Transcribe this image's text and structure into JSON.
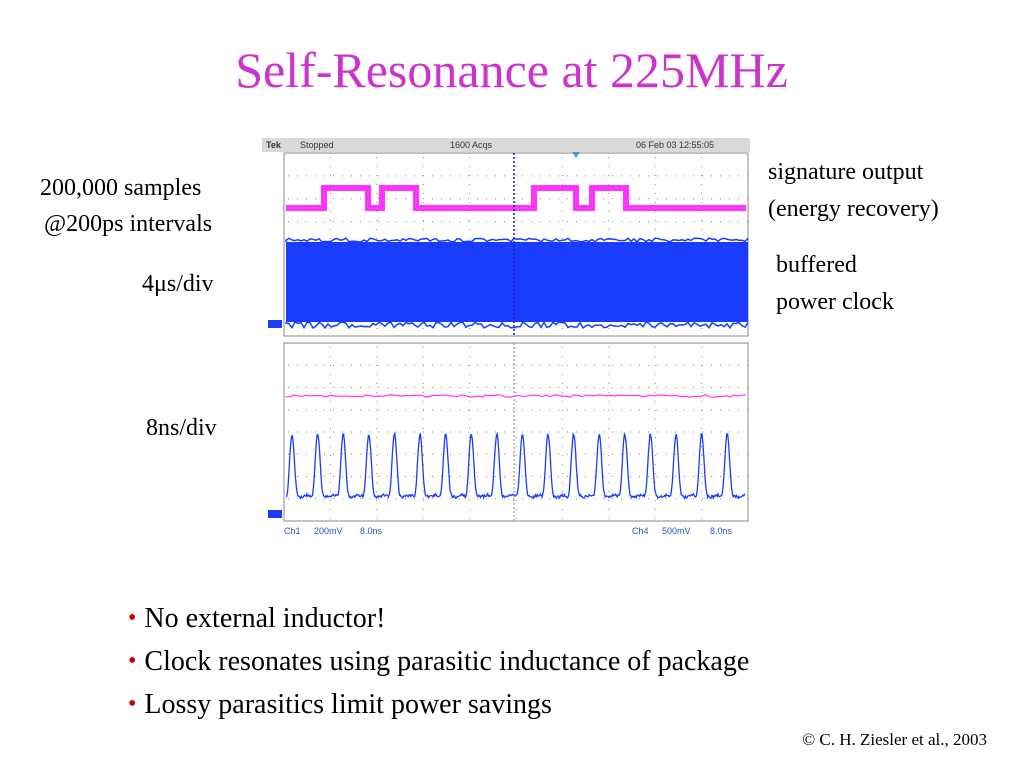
{
  "title": "Self-Resonance at 225MHz",
  "left_labels": {
    "samples": "200,000 samples",
    "intervals": "@200ps intervals",
    "timebase_top": "4μs/div",
    "timebase_bottom": "8ns/div"
  },
  "right_labels": {
    "signature_line1": "signature output",
    "signature_line2": "(energy recovery)",
    "buffered_line1": "buffered",
    "buffered_line2": "power clock"
  },
  "scope": {
    "header": {
      "brand": "Tek",
      "state": "Stopped",
      "acqs": "1600 Acqs",
      "datetime": "06 Feb 03 12:55:05"
    },
    "footer": {
      "ch1": "Ch1",
      "ch1_scale": "200mV",
      "ch1_time": "8.0ns",
      "ch4": "Ch4",
      "ch4_scale": "500mV",
      "ch4_time": "8.0ns"
    },
    "colors": {
      "signature": "#ff33ff",
      "clock": "#1a3cff",
      "grid": "#888888"
    }
  },
  "bullets": [
    "No external inductor!",
    "Clock resonates using parasitic inductance of package",
    "Lossy parasitics limit power savings"
  ],
  "credit": "© C. H. Ziesler et al., 2003",
  "colors": {
    "title": "#cc33cc",
    "bullet_marker": "#cc0000"
  }
}
